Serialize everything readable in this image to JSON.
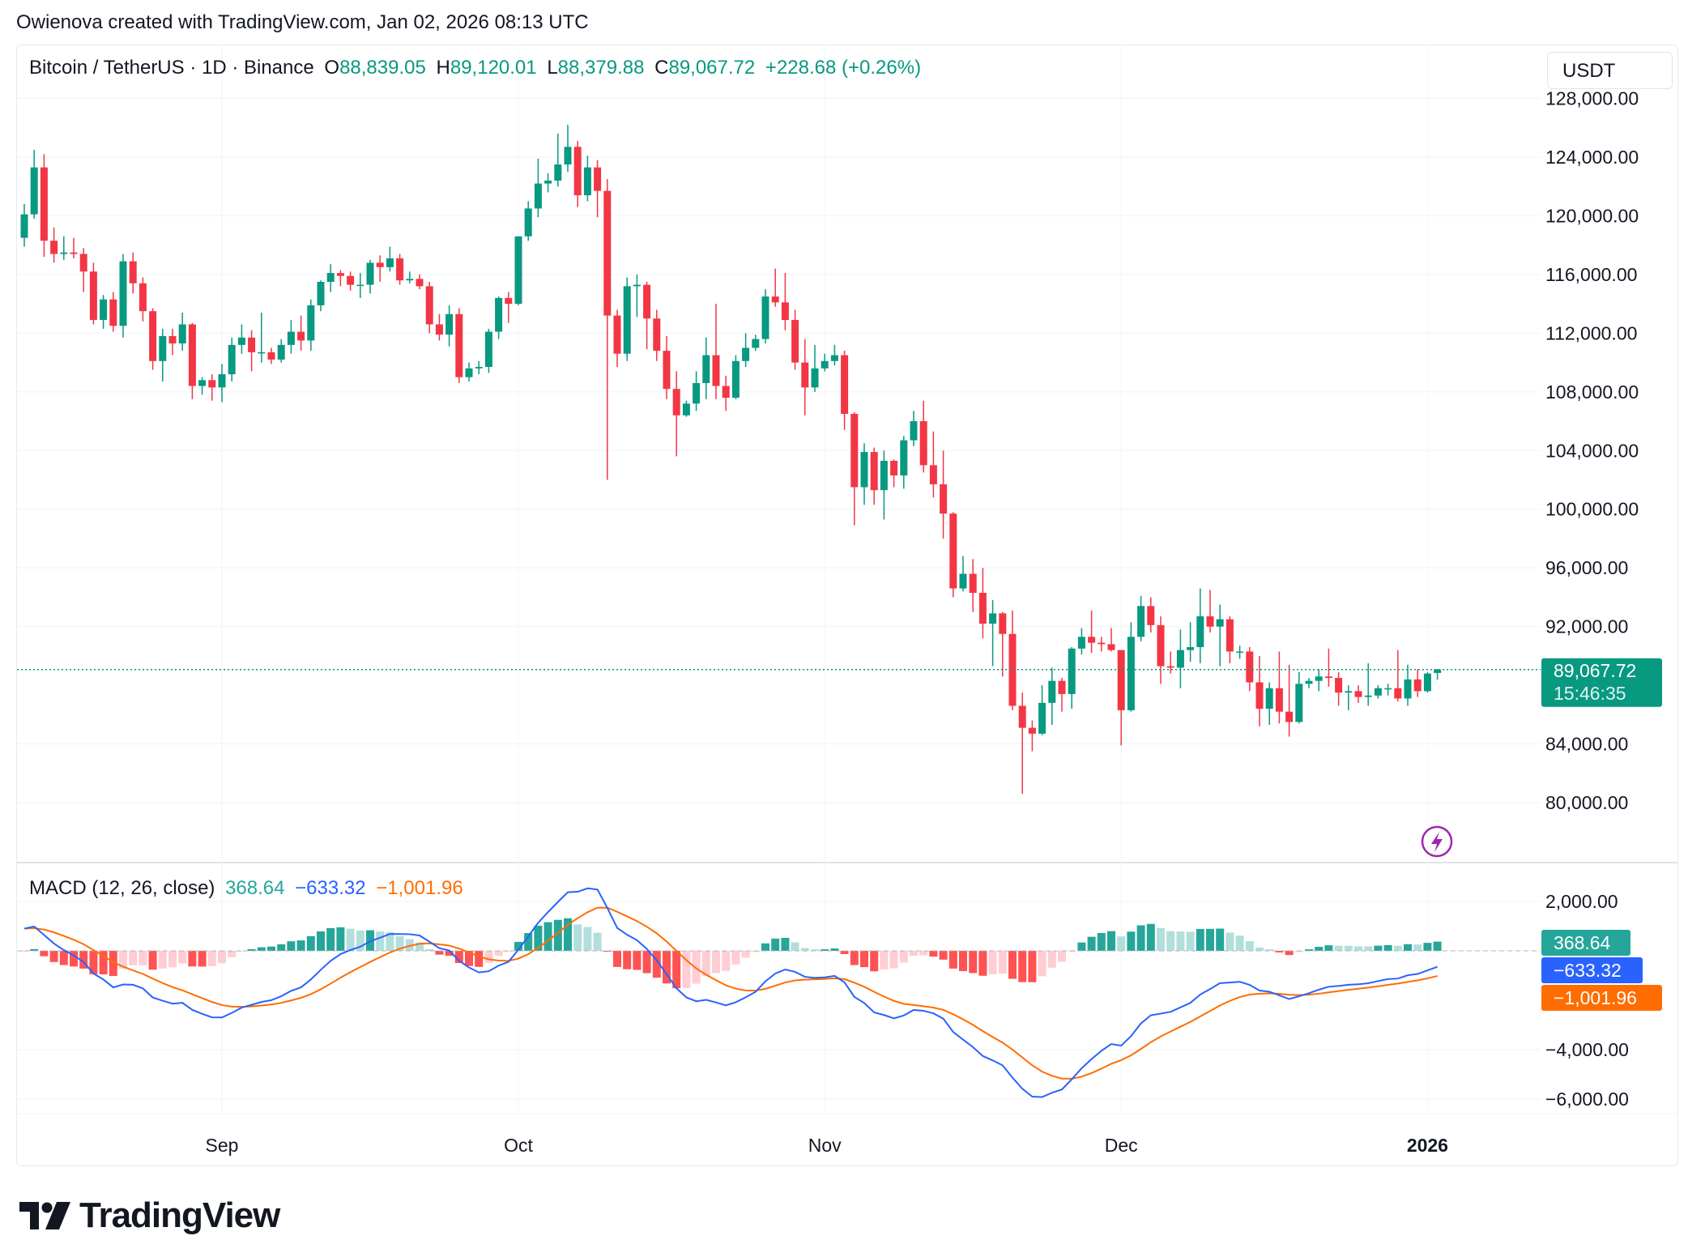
{
  "credit": "Owienova created with TradingView.com, Jan 02, 2026 08:13 UTC",
  "legend": {
    "symbol": "Bitcoin / TetherUS · 1D · Binance",
    "o_label": "O",
    "o": "88,839.05",
    "h_label": "H",
    "h": "89,120.01",
    "l_label": "L",
    "l": "88,379.88",
    "c_label": "C",
    "c": "89,067.72",
    "change": "+228.68 (+0.26%)"
  },
  "currency_button": "USDT",
  "last_price_label": "89,067.72",
  "countdown": "15:46:35",
  "macd_legend": {
    "title": "MACD (12, 26, close)",
    "hist": "368.64",
    "macd": "−633.32",
    "signal": "−1,001.96"
  },
  "macd_labels": {
    "hist": "368.64",
    "macd": "−633.32",
    "signal": "−1,001.96"
  },
  "logo_text": "TradingView",
  "colors": {
    "up": "#089981",
    "down": "#F23645",
    "macd": "#2962FF",
    "signal": "#FF6D00",
    "hist_up_strong": "#26A69A",
    "hist_up_weak": "#B2DFDB",
    "hist_down_strong": "#FF5252",
    "hist_down_weak": "#FFCDD2"
  },
  "chart_data": {
    "type": "candlestick",
    "first_date": "2025-08-12",
    "interval": "1D",
    "price_axis": {
      "ticks": [
        "128,000.00",
        "124,000.00",
        "120,000.00",
        "116,000.00",
        "112,000.00",
        "108,000.00",
        "104,000.00",
        "100,000.00",
        "96,000.00",
        "92,000.00",
        "84,000.00",
        "80,000.00"
      ],
      "tick_values": [
        128000,
        124000,
        120000,
        116000,
        112000,
        108000,
        104000,
        100000,
        96000,
        92000,
        84000,
        80000
      ],
      "range": [
        76000,
        128000
      ]
    },
    "macd_axis": {
      "ticks": [
        "2,000.00",
        "−4,000.00",
        "−6,000.00"
      ],
      "tick_values": [
        2000,
        -4000,
        -6000
      ],
      "range": [
        -6500,
        3000
      ]
    },
    "time_axis": [
      {
        "label": "Sep",
        "date": "2025-09-01"
      },
      {
        "label": "Oct",
        "date": "2025-10-01"
      },
      {
        "label": "Nov",
        "date": "2025-11-01"
      },
      {
        "label": "Dec",
        "date": "2025-12-01"
      },
      {
        "label": "2026",
        "date": "2026-01-01"
      }
    ],
    "last_price": 89067.72,
    "candles_ohlc": [
      [
        118500,
        120800,
        117900,
        120100
      ],
      [
        120100,
        124500,
        119800,
        123300
      ],
      [
        123300,
        124200,
        117200,
        118300
      ],
      [
        118300,
        119200,
        116800,
        117400
      ],
      [
        117400,
        118600,
        117000,
        117500
      ],
      [
        117500,
        118500,
        117100,
        117400
      ],
      [
        117400,
        117800,
        114800,
        116200
      ],
      [
        116200,
        116800,
        112600,
        112900
      ],
      [
        112900,
        114600,
        112300,
        114300
      ],
      [
        114300,
        114800,
        112100,
        112500
      ],
      [
        112500,
        117400,
        111700,
        116900
      ],
      [
        116900,
        117500,
        114700,
        115400
      ],
      [
        115400,
        115800,
        112800,
        113500
      ],
      [
        113500,
        113700,
        109500,
        110100
      ],
      [
        110100,
        112300,
        108700,
        111800
      ],
      [
        111800,
        112300,
        110500,
        111300
      ],
      [
        111300,
        113400,
        110800,
        112600
      ],
      [
        112600,
        112700,
        107500,
        108400
      ],
      [
        108400,
        109000,
        107800,
        108800
      ],
      [
        108800,
        109200,
        107400,
        108300
      ],
      [
        108300,
        109900,
        107300,
        109200
      ],
      [
        109200,
        111700,
        108700,
        111200
      ],
      [
        111200,
        112600,
        110600,
        111700
      ],
      [
        111700,
        112200,
        109400,
        110700
      ],
      [
        110700,
        113400,
        110000,
        110700
      ],
      [
        110700,
        111000,
        109900,
        110200
      ],
      [
        110200,
        111600,
        110000,
        111200
      ],
      [
        111200,
        112900,
        110600,
        112100
      ],
      [
        112100,
        113200,
        110800,
        111500
      ],
      [
        111500,
        114300,
        110800,
        113900
      ],
      [
        113900,
        115600,
        113500,
        115500
      ],
      [
        115500,
        116700,
        114800,
        116100
      ],
      [
        116100,
        116300,
        115200,
        115900
      ],
      [
        115900,
        116200,
        114900,
        115300
      ],
      [
        115300,
        116100,
        114400,
        115300
      ],
      [
        115300,
        117000,
        114700,
        116800
      ],
      [
        116800,
        117300,
        115500,
        116500
      ],
      [
        116500,
        117900,
        116200,
        117100
      ],
      [
        117100,
        117400,
        115300,
        115600
      ],
      [
        115600,
        116200,
        115400,
        115700
      ],
      [
        115700,
        116000,
        115000,
        115200
      ],
      [
        115200,
        115500,
        112000,
        112600
      ],
      [
        112600,
        113300,
        111500,
        111900
      ],
      [
        111900,
        113900,
        111100,
        113300
      ],
      [
        113300,
        113700,
        108600,
        109000
      ],
      [
        109000,
        110000,
        108700,
        109600
      ],
      [
        109600,
        110100,
        109200,
        109700
      ],
      [
        109700,
        112300,
        109300,
        112100
      ],
      [
        112100,
        114500,
        111600,
        114400
      ],
      [
        114400,
        114800,
        112700,
        114000
      ],
      [
        114000,
        118600,
        113900,
        118600
      ],
      [
        118600,
        121000,
        118300,
        120500
      ],
      [
        120500,
        123900,
        119900,
        122200
      ],
      [
        122200,
        122900,
        121600,
        122400
      ],
      [
        122400,
        125600,
        122000,
        123500
      ],
      [
        123500,
        126200,
        123000,
        124700
      ],
      [
        124700,
        125100,
        120600,
        121400
      ],
      [
        121400,
        124100,
        121000,
        123300
      ],
      [
        123300,
        123800,
        119900,
        121700
      ],
      [
        121700,
        122500,
        102000,
        113200
      ],
      [
        113200,
        113600,
        109700,
        110600
      ],
      [
        110600,
        115800,
        110100,
        115200
      ],
      [
        115200,
        116000,
        113100,
        115300
      ],
      [
        115300,
        115500,
        110900,
        113000
      ],
      [
        113000,
        113600,
        110100,
        110800
      ],
      [
        110800,
        111800,
        107500,
        108200
      ],
      [
        108200,
        109400,
        103600,
        106400
      ],
      [
        106400,
        107400,
        106300,
        107200
      ],
      [
        107200,
        109400,
        106700,
        108600
      ],
      [
        108600,
        111700,
        107500,
        110500
      ],
      [
        110500,
        114000,
        107500,
        108400
      ],
      [
        108400,
        109100,
        106700,
        107600
      ],
      [
        107600,
        110500,
        107500,
        110100
      ],
      [
        110100,
        112000,
        109700,
        111000
      ],
      [
        111000,
        111900,
        110800,
        111600
      ],
      [
        111600,
        115000,
        111300,
        114500
      ],
      [
        114500,
        116400,
        113800,
        114100
      ],
      [
        114100,
        116100,
        112200,
        112900
      ],
      [
        112900,
        113600,
        109500,
        110000
      ],
      [
        110000,
        111600,
        106400,
        108300
      ],
      [
        108300,
        111200,
        108000,
        109600
      ],
      [
        109600,
        110600,
        109400,
        110100
      ],
      [
        110100,
        111200,
        109800,
        110500
      ],
      [
        110500,
        110800,
        105400,
        106500
      ],
      [
        106500,
        106600,
        98900,
        101500
      ],
      [
        101500,
        104500,
        100300,
        103900
      ],
      [
        103900,
        104200,
        100300,
        101300
      ],
      [
        101300,
        104000,
        99300,
        103300
      ],
      [
        103300,
        103400,
        101500,
        102300
      ],
      [
        102300,
        105000,
        101400,
        104700
      ],
      [
        104700,
        106700,
        104300,
        106000
      ],
      [
        106000,
        107400,
        102500,
        103000
      ],
      [
        103000,
        105300,
        100800,
        101700
      ],
      [
        101700,
        104000,
        98000,
        99700
      ],
      [
        99700,
        99800,
        94000,
        94600
      ],
      [
        94600,
        96800,
        94400,
        95600
      ],
      [
        95600,
        96600,
        93000,
        94300
      ],
      [
        94300,
        96000,
        91200,
        92200
      ],
      [
        92200,
        93800,
        89300,
        92900
      ],
      [
        92900,
        93000,
        88600,
        91500
      ],
      [
        91500,
        93100,
        86300,
        86600
      ],
      [
        86600,
        87500,
        80600,
        85100
      ],
      [
        85100,
        85600,
        83500,
        84700
      ],
      [
        84700,
        88000,
        84600,
        86800
      ],
      [
        86800,
        89200,
        85300,
        88300
      ],
      [
        88300,
        88500,
        86200,
        87400
      ],
      [
        87400,
        90600,
        86400,
        90500
      ],
      [
        90500,
        91900,
        90100,
        91300
      ],
      [
        91300,
        93100,
        90200,
        90900
      ],
      [
        90900,
        91300,
        90300,
        90800
      ],
      [
        90800,
        91900,
        90300,
        90400
      ],
      [
        90400,
        90400,
        83900,
        86300
      ],
      [
        86300,
        92300,
        86200,
        91300
      ],
      [
        91300,
        94100,
        91000,
        93400
      ],
      [
        93400,
        94000,
        91600,
        92100
      ],
      [
        92100,
        92700,
        88100,
        89300
      ],
      [
        89300,
        90300,
        88800,
        89200
      ],
      [
        89200,
        91800,
        87800,
        90400
      ],
      [
        90400,
        92300,
        89600,
        90600
      ],
      [
        90600,
        94600,
        89500,
        92700
      ],
      [
        92700,
        94500,
        91600,
        92000
      ],
      [
        92000,
        93500,
        89300,
        92500
      ],
      [
        92500,
        92700,
        89500,
        90300
      ],
      [
        90300,
        90700,
        89800,
        90300
      ],
      [
        90300,
        90600,
        87600,
        88200
      ],
      [
        88200,
        90000,
        85200,
        86400
      ],
      [
        86400,
        88200,
        85300,
        87800
      ],
      [
        87800,
        90300,
        85400,
        86200
      ],
      [
        86200,
        89400,
        84500,
        85500
      ],
      [
        85500,
        88900,
        85400,
        88100
      ],
      [
        88100,
        88500,
        87800,
        88300
      ],
      [
        88300,
        89100,
        87600,
        88600
      ],
      [
        88600,
        90500,
        87900,
        88500
      ],
      [
        88500,
        88900,
        86600,
        87500
      ],
      [
        87500,
        88000,
        86300,
        87600
      ],
      [
        87600,
        88000,
        86800,
        87200
      ],
      [
        87200,
        89500,
        86600,
        87300
      ],
      [
        87300,
        88000,
        87100,
        87800
      ],
      [
        87800,
        88100,
        87300,
        87800
      ],
      [
        87800,
        90400,
        86900,
        87100
      ],
      [
        87100,
        89400,
        86600,
        88400
      ],
      [
        88400,
        89100,
        87200,
        87600
      ],
      [
        87600,
        88900,
        87500,
        88800
      ],
      [
        88839,
        89120,
        88380,
        89068
      ]
    ]
  }
}
